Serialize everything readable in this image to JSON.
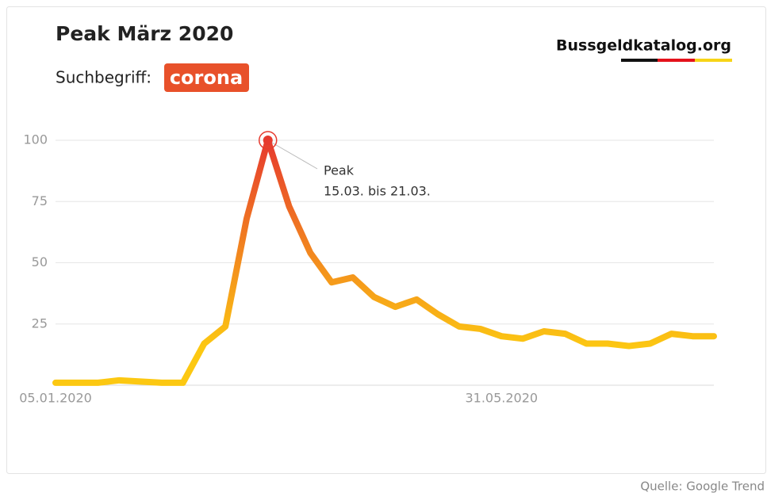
{
  "chart_data": {
    "type": "line",
    "title": "Peak März 2020",
    "subtitle": "Suchbegriff:",
    "search_term": "corona",
    "brand": "Bussgeldkatalog.org",
    "source": "Quelle: Google Trend",
    "annotation": {
      "title": "Peak",
      "text": "15.03. bis 21.03.",
      "index": 10
    },
    "categories": [
      "05.01.2020",
      null,
      null,
      null,
      null,
      null,
      null,
      null,
      null,
      null,
      null,
      null,
      null,
      null,
      null,
      null,
      null,
      null,
      null,
      null,
      null,
      "31.05.2020",
      null,
      null,
      null,
      null,
      null,
      null,
      null,
      null,
      null,
      null
    ],
    "values": [
      1,
      1,
      1,
      2,
      1.5,
      1,
      1,
      17,
      24,
      68,
      100,
      73,
      54,
      42,
      44,
      36,
      32,
      35,
      29,
      24,
      23,
      20,
      19,
      22,
      21,
      17,
      17,
      16,
      17,
      21,
      20,
      20
    ],
    "color_low": "#fcc812",
    "color_high": "#e63a2e",
    "ylim": [
      0,
      100
    ],
    "yticks": [
      25,
      50,
      75,
      100
    ],
    "grid": true
  }
}
